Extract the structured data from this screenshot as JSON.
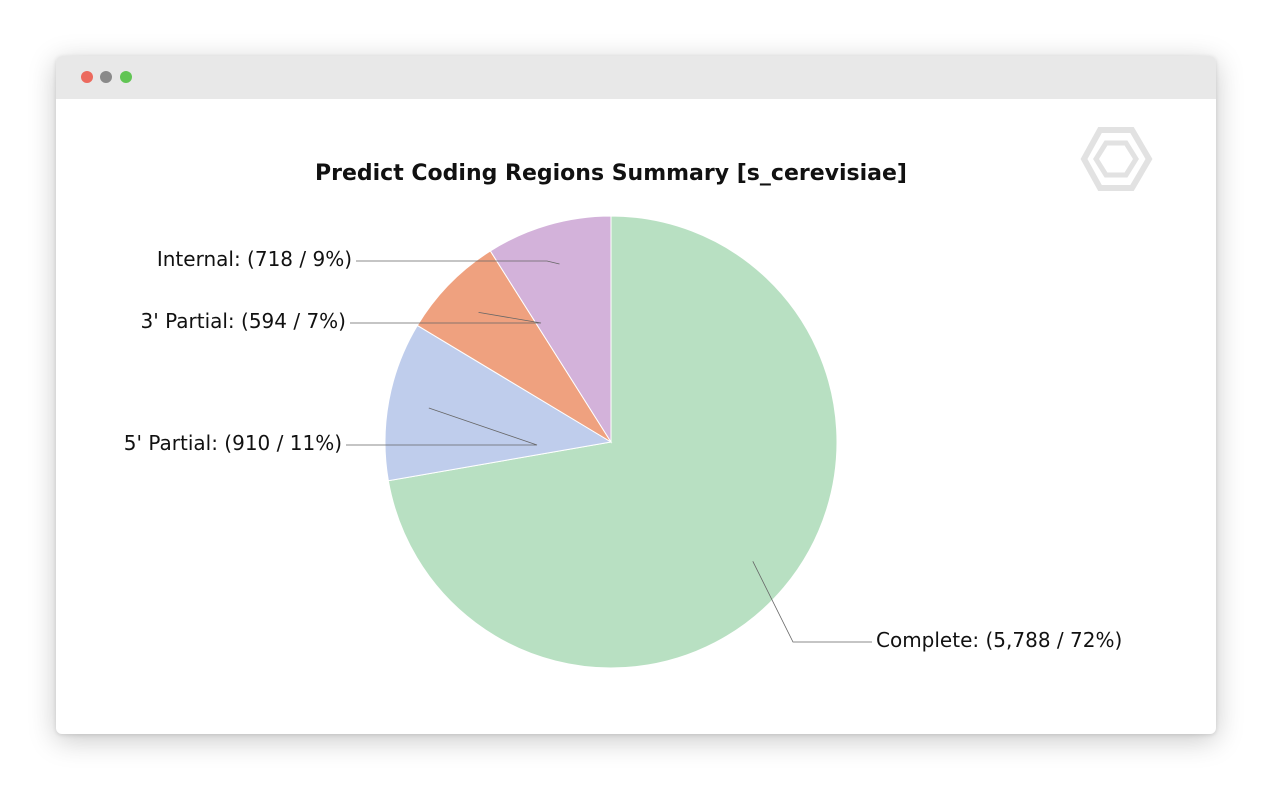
{
  "window": {
    "controls": [
      {
        "name": "close",
        "color": "#ec6a5e"
      },
      {
        "name": "minimize",
        "color": "#8a8a8a"
      },
      {
        "name": "zoom",
        "color": "#61c554"
      }
    ]
  },
  "logo": {
    "icon": "hexagon-logo-icon"
  },
  "chart_data": {
    "type": "pie",
    "title": "Predict Coding Regions Summary [s_cerevisiae]",
    "start_angle_deg": 0,
    "direction": "clockwise",
    "slices": [
      {
        "name": "Complete",
        "value": 5788,
        "percent": 72,
        "label": "Complete: (5,788 / 72%)",
        "color": "#b8e0c2",
        "label_side": "right"
      },
      {
        "name": "5' Partial",
        "value": 910,
        "percent": 11,
        "label": "5' Partial: (910 / 11%)",
        "color": "#bfcdec",
        "label_side": "left"
      },
      {
        "name": "3' Partial",
        "value": 594,
        "percent": 7,
        "label": "3' Partial: (594 / 7%)",
        "color": "#efa17f",
        "label_side": "left"
      },
      {
        "name": "Internal",
        "value": 718,
        "percent": 9,
        "label": "Internal: (718 / 9%)",
        "color": "#d3b2da",
        "label_side": "left"
      }
    ]
  }
}
